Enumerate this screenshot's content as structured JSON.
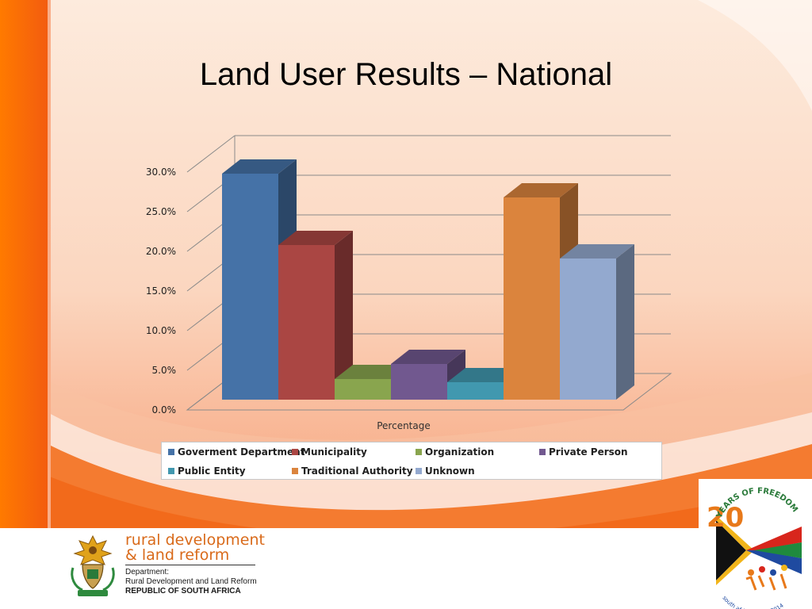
{
  "slide": {
    "title": "Land User Results – National"
  },
  "chart_data": {
    "type": "bar",
    "style": "3d-column",
    "title": "",
    "xlabel": "Percentage",
    "ylabel": "",
    "ylim": [
      0,
      30
    ],
    "yticks": [
      "0.0%",
      "5.0%",
      "10.0%",
      "15.0%",
      "20.0%",
      "25.0%",
      "30.0%"
    ],
    "grid": true,
    "legend_position": "bottom",
    "categories": [
      "Percentage"
    ],
    "series": [
      {
        "name": "Goverment Department",
        "values": [
          28.5
        ],
        "color": "#4572a7"
      },
      {
        "name": "Municipality",
        "values": [
          19.5
        ],
        "color": "#aa4643"
      },
      {
        "name": "Organization",
        "values": [
          2.6
        ],
        "color": "#89a54e"
      },
      {
        "name": "Private Person",
        "values": [
          4.5
        ],
        "color": "#71588f"
      },
      {
        "name": "Public Entity",
        "values": [
          2.2
        ],
        "color": "#4198af"
      },
      {
        "name": "Traditional Authority",
        "values": [
          25.5
        ],
        "color": "#db843d"
      },
      {
        "name": "Unknown",
        "values": [
          17.8
        ],
        "color": "#93a9cf"
      }
    ]
  },
  "footer": {
    "dept_title_line1": "rural development",
    "dept_title_line2": "& land reform",
    "dept_sub_line1": "Department:",
    "dept_sub_line2": "Rural Development and Land Reform",
    "dept_sub_line3": "REPUBLIC OF SOUTH AFRICA",
    "logo_number": "20",
    "logo_text": "YEARS OF FREEDOM",
    "logo_subtext": "south africa 1994 - 2014"
  },
  "colors": {
    "accent_orange": "#f26a1b",
    "dept_orange": "#d96a1a"
  }
}
